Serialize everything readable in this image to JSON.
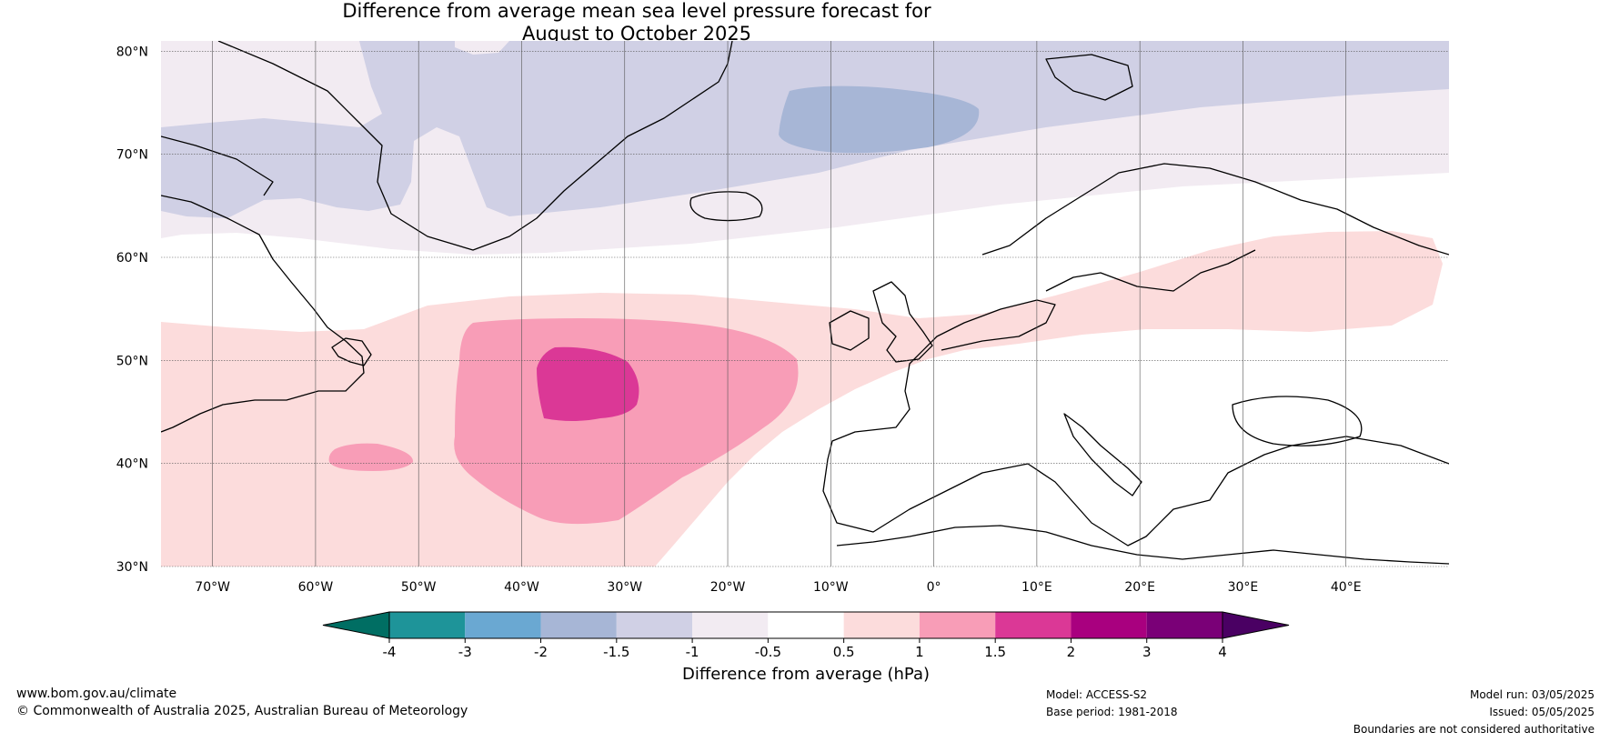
{
  "title_line1": "Difference from average mean sea level pressure forecast for",
  "title_line2": "August to October 2025",
  "map": {
    "lat_ticks": [
      "80°N",
      "70°N",
      "60°N",
      "50°N",
      "40°N",
      "30°N"
    ],
    "lon_ticks": [
      "70°W",
      "60°W",
      "50°W",
      "40°W",
      "30°W",
      "20°W",
      "10°W",
      "0°",
      "10°E",
      "20°E",
      "30°E",
      "40°E"
    ],
    "lat_range": [
      30,
      81
    ],
    "lon_range": [
      -75,
      50
    ],
    "gridlines": true
  },
  "colorbar": {
    "label": "Difference from average (hPa)",
    "ticks": [
      "-4",
      "-3",
      "-2",
      "-1.5",
      "-1",
      "-0.5",
      "0.5",
      "1",
      "1.5",
      "2",
      "3",
      "4"
    ],
    "colors": {
      "below_min": "#006e63",
      "bins": [
        "#1e9499",
        "#6aa8d2",
        "#a7b6d6",
        "#d0d0e5",
        "#f2ebf2",
        "#ffffff",
        "#fcdcdc",
        "#f89db7",
        "#db3896",
        "#a9007f",
        "#7a0077"
      ],
      "above_max": "#4a0063"
    }
  },
  "footer": {
    "website": "www.bom.gov.au/climate",
    "copyright": "© Commonwealth of Australia 2025, Australian Bureau of Meteorology",
    "model": "Model: ACCESS-S2",
    "base_period": "Base period: 1981-2018",
    "model_run": "Model run: 03/05/2025",
    "issued": "Issued: 05/05/2025",
    "disclaimer": "Boundaries are not considered authoritative"
  }
}
